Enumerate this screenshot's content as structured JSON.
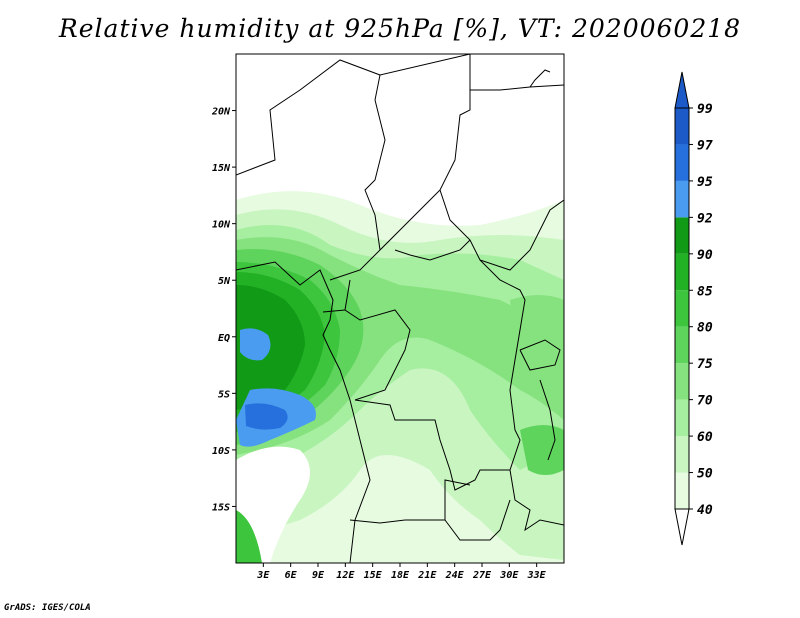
{
  "title": "Relative humidity at 925hPa [%], VT: 2020060218",
  "credit": "GrADS: IGES/COLA",
  "map": {
    "projection": "latlon",
    "lon_range": [
      0,
      36
    ],
    "lat_range": [
      -20,
      25
    ],
    "lat_ticks": [
      {
        "value": 20,
        "label": "20N"
      },
      {
        "value": 15,
        "label": "15N"
      },
      {
        "value": 10,
        "label": "10N"
      },
      {
        "value": 5,
        "label": "5N"
      },
      {
        "value": 0,
        "label": "EQ"
      },
      {
        "value": -5,
        "label": "5S"
      },
      {
        "value": -10,
        "label": "10S"
      },
      {
        "value": -15,
        "label": "15S"
      }
    ],
    "lon_ticks": [
      {
        "value": 3,
        "label": "3E"
      },
      {
        "value": 6,
        "label": "6E"
      },
      {
        "value": 9,
        "label": "9E"
      },
      {
        "value": 12,
        "label": "12E"
      },
      {
        "value": 15,
        "label": "15E"
      },
      {
        "value": 18,
        "label": "18E"
      },
      {
        "value": 21,
        "label": "21E"
      },
      {
        "value": 24,
        "label": "24E"
      },
      {
        "value": 27,
        "label": "27E"
      },
      {
        "value": 30,
        "label": "30E"
      },
      {
        "value": 33,
        "label": "33E"
      }
    ]
  },
  "colorbar": {
    "levels": [
      "40",
      "50",
      "60",
      "70",
      "75",
      "80",
      "85",
      "90",
      "92",
      "95",
      "97",
      "99"
    ],
    "colors": [
      "#ffffff",
      "#e6fbe0",
      "#c8f5c0",
      "#a6eea0",
      "#86e27e",
      "#5fd45d",
      "#3ec53e",
      "#22b025",
      "#119a16",
      "#4a9cf0",
      "#2570dc",
      "#1c5ac8"
    ]
  }
}
